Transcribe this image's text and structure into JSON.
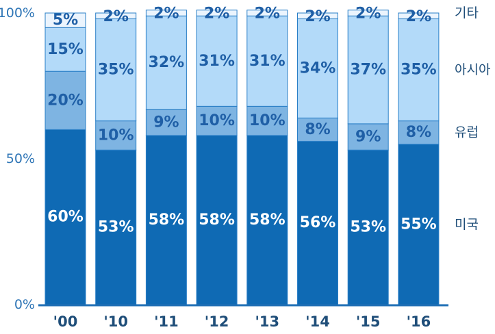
{
  "chart_data": {
    "type": "bar",
    "stacked": true,
    "categories": [
      "'00",
      "'10",
      "'11",
      "'12",
      "'13",
      "'14",
      "'15",
      "'16"
    ],
    "yticks": [
      "100%",
      "50%",
      "0%"
    ],
    "ylim": [
      0,
      100
    ],
    "grid": false,
    "legend_position": "right",
    "series": [
      {
        "name": "미국",
        "color": "#0f6ab4",
        "label_color": "#ffffff",
        "values": [
          60,
          53,
          58,
          58,
          58,
          56,
          53,
          55
        ]
      },
      {
        "name": "유럽",
        "color": "#7eb4e2",
        "label_color": "#1f5fa6",
        "values": [
          20,
          10,
          9,
          10,
          10,
          8,
          9,
          8
        ]
      },
      {
        "name": "아시아",
        "color": "#b3daf9",
        "label_color": "#1f5fa6",
        "values": [
          15,
          35,
          32,
          31,
          31,
          34,
          37,
          35
        ]
      },
      {
        "name": "기타",
        "color": "#ebf4fd",
        "label_color": "#1f5fa6",
        "values": [
          5,
          2,
          2,
          2,
          2,
          2,
          2,
          2
        ]
      }
    ]
  }
}
